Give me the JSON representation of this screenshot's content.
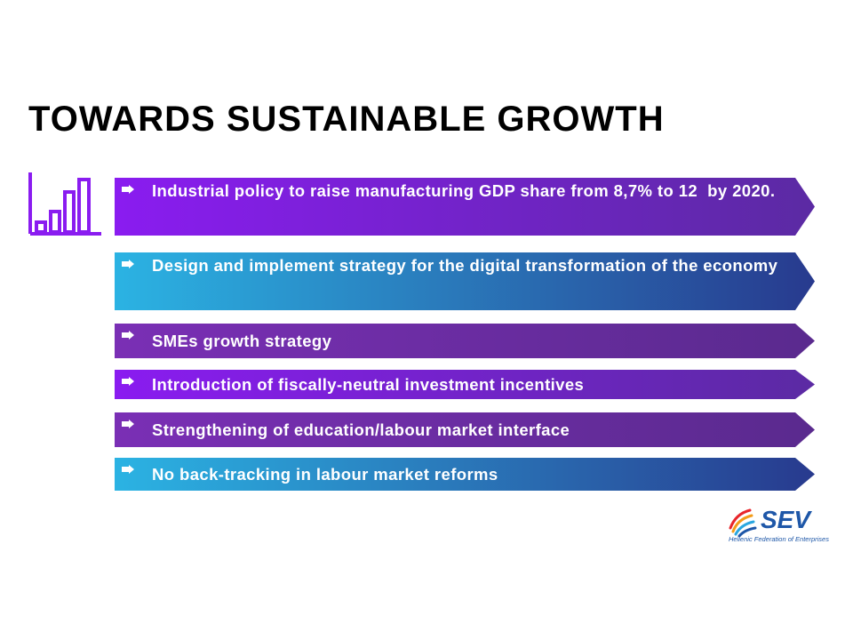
{
  "slide": {
    "title": "TOWARDS SUSTAINABLE GROWTH",
    "icon": "bar-chart-icon",
    "bullet_icon": "arrow-right-icon",
    "items": [
      {
        "text": "Industrial policy to raise manufacturing GDP share from 8,7% to 12  by 2020."
      },
      {
        "text": "Design and implement strategy for the digital transformation of the economy"
      },
      {
        "text": "SMEs growth strategy"
      },
      {
        "text": "Introduction of fiscally-neutral investment incentives"
      },
      {
        "text": "Strengthening of education/labour market interface"
      },
      {
        "text": "No back-tracking in labour market reforms"
      }
    ],
    "colors": {
      "title": "#000000",
      "icon": "#8a1cf0",
      "bullet_text": "#ffffff",
      "logo": "#1e57a8"
    }
  },
  "logo": {
    "name": "SEV",
    "subtitle": "Hellenic Federation of Enterprises"
  }
}
